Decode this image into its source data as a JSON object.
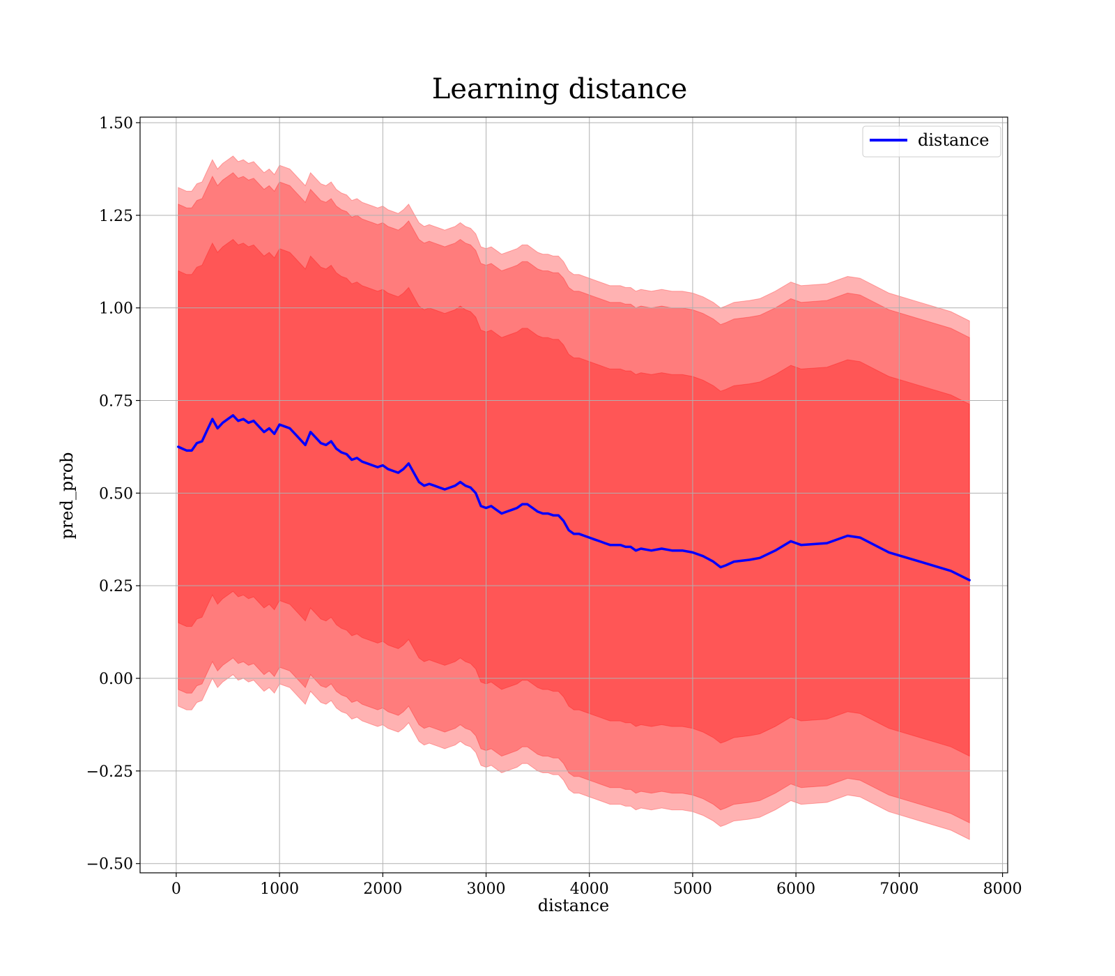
{
  "chart_data": {
    "type": "line",
    "title": "Learning distance",
    "xlabel": "distance",
    "ylabel": "pred_prob",
    "xlim": [
      -350,
      8050
    ],
    "ylim": [
      -0.525,
      1.515
    ],
    "xticks": [
      0,
      1000,
      2000,
      3000,
      4000,
      5000,
      6000,
      7000,
      8000
    ],
    "xtick_labels": [
      "0",
      "1000",
      "2000",
      "3000",
      "4000",
      "5000",
      "6000",
      "7000",
      "8000"
    ],
    "yticks": [
      -0.5,
      -0.25,
      0.0,
      0.25,
      0.5,
      0.75,
      1.0,
      1.25,
      1.5
    ],
    "ytick_labels": [
      "−0.50",
      "−0.25",
      "0.00",
      "0.25",
      "0.50",
      "0.75",
      "1.00",
      "1.25",
      "1.50"
    ],
    "grid": true,
    "legend_position": "top-right",
    "colors": {
      "line": "#0000ff",
      "band": "#ff0000",
      "grid": "#b0b0b0"
    },
    "series": [
      {
        "name": "distance",
        "x": [
          20,
          60,
          100,
          150,
          200,
          250,
          300,
          350,
          400,
          450,
          500,
          550,
          600,
          650,
          700,
          750,
          800,
          850,
          900,
          950,
          1000,
          1050,
          1100,
          1150,
          1200,
          1250,
          1300,
          1350,
          1400,
          1450,
          1500,
          1550,
          1600,
          1650,
          1700,
          1750,
          1800,
          1850,
          1900,
          1950,
          2000,
          2050,
          2100,
          2150,
          2200,
          2250,
          2300,
          2350,
          2400,
          2450,
          2500,
          2550,
          2600,
          2650,
          2700,
          2750,
          2800,
          2850,
          2900,
          2950,
          3000,
          3050,
          3100,
          3150,
          3200,
          3250,
          3300,
          3350,
          3400,
          3450,
          3500,
          3550,
          3600,
          3650,
          3700,
          3750,
          3800,
          3850,
          3900,
          3950,
          4000,
          4050,
          4100,
          4150,
          4200,
          4250,
          4300,
          4350,
          4400,
          4450,
          4500,
          4600,
          4700,
          4800,
          4900,
          5000,
          5100,
          5200,
          5270,
          5320,
          5400,
          5550,
          5650,
          5800,
          5950,
          6050,
          6300,
          6500,
          6620,
          6900,
          7200,
          7500,
          7680
        ],
        "y": [
          0.625,
          0.62,
          0.615,
          0.615,
          0.635,
          0.64,
          0.67,
          0.7,
          0.675,
          0.69,
          0.7,
          0.71,
          0.695,
          0.7,
          0.69,
          0.695,
          0.68,
          0.665,
          0.675,
          0.66,
          0.685,
          0.68,
          0.675,
          0.66,
          0.645,
          0.63,
          0.665,
          0.65,
          0.635,
          0.63,
          0.64,
          0.62,
          0.61,
          0.605,
          0.59,
          0.595,
          0.585,
          0.58,
          0.575,
          0.57,
          0.575,
          0.565,
          0.56,
          0.555,
          0.565,
          0.58,
          0.555,
          0.53,
          0.52,
          0.525,
          0.52,
          0.515,
          0.51,
          0.515,
          0.52,
          0.53,
          0.52,
          0.515,
          0.5,
          0.465,
          0.46,
          0.465,
          0.455,
          0.445,
          0.45,
          0.455,
          0.46,
          0.47,
          0.47,
          0.46,
          0.45,
          0.445,
          0.445,
          0.44,
          0.44,
          0.425,
          0.4,
          0.39,
          0.39,
          0.385,
          0.38,
          0.375,
          0.37,
          0.365,
          0.36,
          0.36,
          0.36,
          0.355,
          0.355,
          0.345,
          0.35,
          0.345,
          0.35,
          0.345,
          0.345,
          0.34,
          0.33,
          0.315,
          0.3,
          0.305,
          0.315,
          0.32,
          0.325,
          0.345,
          0.37,
          0.36,
          0.365,
          0.385,
          0.38,
          0.34,
          0.315,
          0.29,
          0.265
        ]
      }
    ],
    "bands": [
      {
        "sigma": 1,
        "half_width_start": 0.475,
        "half_width_end": 0.475
      },
      {
        "sigma": 2,
        "half_width_start": 0.655,
        "half_width_end": 0.655
      },
      {
        "sigma": 3,
        "half_width_start": 0.7,
        "half_width_end": 0.7
      }
    ]
  }
}
